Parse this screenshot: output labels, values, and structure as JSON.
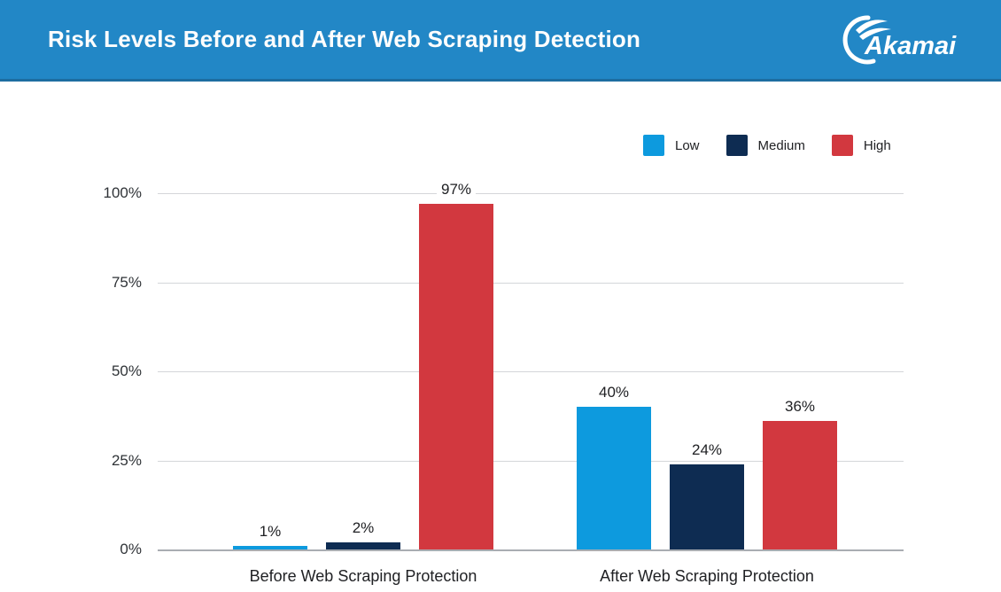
{
  "header": {
    "title": "Risk Levels Before and After Web Scraping Detection",
    "brand": "Akamai",
    "background_color": "#2287c6"
  },
  "chart_data": {
    "type": "bar",
    "title": "Risk Levels Before and After Web Scraping Detection",
    "categories": [
      "Before Web Scraping Protection",
      "After Web Scraping Protection"
    ],
    "series": [
      {
        "name": "Low",
        "color": "#0d9ade",
        "values": [
          1,
          40
        ]
      },
      {
        "name": "Medium",
        "color": "#0e2c52",
        "values": [
          2,
          24
        ]
      },
      {
        "name": "High",
        "color": "#d2383f",
        "values": [
          97,
          36
        ]
      }
    ],
    "value_label_format": "{value}%",
    "xlabel": "",
    "ylabel": "",
    "ylim": [
      0,
      100
    ],
    "yticks": [
      0,
      25,
      50,
      75,
      100
    ],
    "ytick_label_format": "{value}%",
    "grid": true,
    "legend_position": "top-right"
  }
}
